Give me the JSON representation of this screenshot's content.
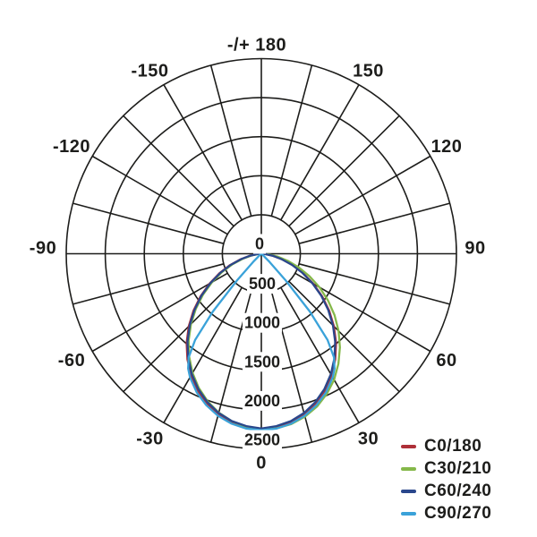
{
  "page": {
    "background": "#ffffff"
  },
  "chart_data": {
    "type": "polar",
    "subtype": "photometric-luminous-intensity-distribution",
    "title": "",
    "units": "cd",
    "angle_unit": "deg",
    "angle_zero_position": "bottom",
    "spoke_step_deg": 15,
    "radial_ticks": [
      0,
      500,
      1000,
      1500,
      2000,
      2500
    ],
    "radial_tick_labels": [
      "0",
      "500",
      "1000",
      "1500",
      "2000",
      "2500"
    ],
    "radial_max": 2500,
    "grid_on": true,
    "grid_color": "#1d1d1b",
    "angle_labels": [
      {
        "text": "-/+ 180",
        "angle": 180
      },
      {
        "text": "-150",
        "angle": -150
      },
      {
        "text": "150",
        "angle": 150
      },
      {
        "text": "-120",
        "angle": -120
      },
      {
        "text": "120",
        "angle": 120
      },
      {
        "text": "-90",
        "angle": -90
      },
      {
        "text": "90",
        "angle": 90
      },
      {
        "text": "-60",
        "angle": -60
      },
      {
        "text": "60",
        "angle": 60
      },
      {
        "text": "-30",
        "angle": -30
      },
      {
        "text": "30",
        "angle": 30
      },
      {
        "text": "0",
        "angle": 0
      }
    ],
    "legend": {
      "position": "bottom-right"
    },
    "series": [
      {
        "name": "C0/180",
        "color": "#ae2f38",
        "points": [
          [
            -90,
            0
          ],
          [
            -85,
            51
          ],
          [
            -80,
            150
          ],
          [
            -75,
            277
          ],
          [
            -70,
            427
          ],
          [
            -65,
            592
          ],
          [
            -60,
            768
          ],
          [
            -55,
            950
          ],
          [
            -50,
            1134
          ],
          [
            -45,
            1315
          ],
          [
            -40,
            1489
          ],
          [
            -35,
            1652
          ],
          [
            -30,
            1800
          ],
          [
            -25,
            1932
          ],
          [
            -20,
            2043
          ],
          [
            -15,
            2132
          ],
          [
            -10,
            2197
          ],
          [
            -5,
            2237
          ],
          [
            0,
            2250
          ],
          [
            5,
            2237
          ],
          [
            10,
            2197
          ],
          [
            15,
            2132
          ],
          [
            20,
            2043
          ],
          [
            25,
            1932
          ],
          [
            30,
            1800
          ],
          [
            35,
            1652
          ],
          [
            40,
            1489
          ],
          [
            45,
            1315
          ],
          [
            50,
            1134
          ],
          [
            55,
            950
          ],
          [
            60,
            768
          ],
          [
            65,
            592
          ],
          [
            70,
            427
          ],
          [
            75,
            277
          ],
          [
            80,
            150
          ],
          [
            85,
            51
          ],
          [
            90,
            0
          ]
        ]
      },
      {
        "name": "C30/210",
        "color": "#85b84a",
        "points": [
          [
            -90,
            0
          ],
          [
            -85,
            30
          ],
          [
            -80,
            121
          ],
          [
            -75,
            246
          ],
          [
            -70,
            393
          ],
          [
            -65,
            556
          ],
          [
            -60,
            731
          ],
          [
            -55,
            912
          ],
          [
            -50,
            1094
          ],
          [
            -45,
            1274
          ],
          [
            -40,
            1448
          ],
          [
            -35,
            1612
          ],
          [
            -30,
            1763
          ],
          [
            -25,
            1897
          ],
          [
            -20,
            2013
          ],
          [
            -15,
            2107
          ],
          [
            -10,
            2179
          ],
          [
            -5,
            2226
          ],
          [
            0,
            2248
          ],
          [
            5,
            2245
          ],
          [
            10,
            2216
          ],
          [
            15,
            2161
          ],
          [
            20,
            2084
          ],
          [
            25,
            1983
          ],
          [
            30,
            1864
          ],
          [
            35,
            1722
          ],
          [
            40,
            1567
          ],
          [
            45,
            1400
          ],
          [
            50,
            1224
          ],
          [
            55,
            1043
          ],
          [
            60,
            861
          ],
          [
            65,
            681
          ],
          [
            70,
            509
          ],
          [
            75,
            350
          ],
          [
            80,
            208
          ],
          [
            85,
            92
          ],
          [
            90,
            0
          ]
        ]
      },
      {
        "name": "C60/240",
        "color": "#2a478c",
        "points": [
          [
            -90,
            0
          ],
          [
            -85,
            48
          ],
          [
            -80,
            145
          ],
          [
            -75,
            270
          ],
          [
            -70,
            418
          ],
          [
            -65,
            581
          ],
          [
            -60,
            755
          ],
          [
            -55,
            936
          ],
          [
            -50,
            1118
          ],
          [
            -45,
            1298
          ],
          [
            -40,
            1471
          ],
          [
            -35,
            1633
          ],
          [
            -30,
            1781
          ],
          [
            -25,
            1912
          ],
          [
            -20,
            2023
          ],
          [
            -15,
            2112
          ],
          [
            -10,
            2177
          ],
          [
            -5,
            2217
          ],
          [
            0,
            2240
          ],
          [
            5,
            2217
          ],
          [
            10,
            2177
          ],
          [
            15,
            2112
          ],
          [
            20,
            2023
          ],
          [
            25,
            1912
          ],
          [
            30,
            1781
          ],
          [
            35,
            1633
          ],
          [
            40,
            1471
          ],
          [
            45,
            1298
          ],
          [
            50,
            1118
          ],
          [
            55,
            936
          ],
          [
            60,
            755
          ],
          [
            65,
            581
          ],
          [
            70,
            418
          ],
          [
            75,
            270
          ],
          [
            80,
            145
          ],
          [
            85,
            48
          ],
          [
            90,
            0
          ]
        ]
      },
      {
        "name": "C90/270",
        "color": "#3aa2d9",
        "points": [
          [
            -52,
            0
          ],
          [
            -50,
            10
          ],
          [
            -47.5,
            41
          ],
          [
            -45,
            148
          ],
          [
            -42.5,
            454
          ],
          [
            -40,
            965
          ],
          [
            -37.5,
            1394
          ],
          [
            -35,
            1623
          ],
          [
            -32.5,
            1745
          ],
          [
            -30,
            1829
          ],
          [
            -25,
            1960
          ],
          [
            -20,
            2065
          ],
          [
            -15,
            2149
          ],
          [
            -10,
            2210
          ],
          [
            -5,
            2248
          ],
          [
            0,
            2260
          ],
          [
            5,
            2248
          ],
          [
            10,
            2210
          ],
          [
            15,
            2149
          ],
          [
            20,
            2065
          ],
          [
            25,
            1960
          ],
          [
            30,
            1829
          ],
          [
            32.5,
            1745
          ],
          [
            35,
            1623
          ],
          [
            37.5,
            1394
          ],
          [
            40,
            965
          ],
          [
            42.5,
            454
          ],
          [
            45,
            148
          ],
          [
            47.5,
            41
          ],
          [
            50,
            10
          ],
          [
            52,
            0
          ]
        ]
      }
    ]
  }
}
